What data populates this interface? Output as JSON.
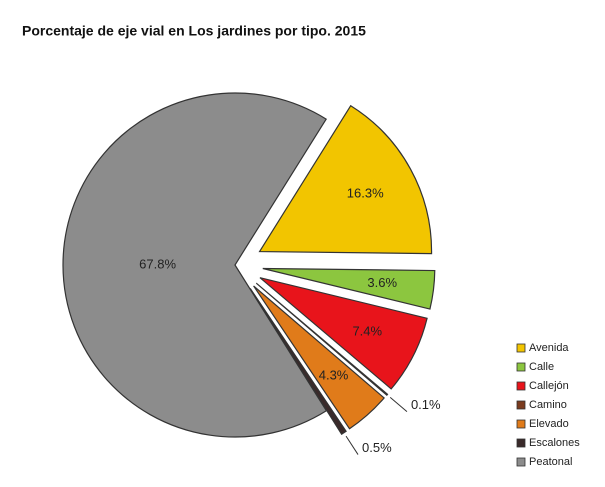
{
  "chart_data": {
    "type": "pie",
    "title": "Porcentaje de eje vial en Los jardines por tipo. 2015",
    "categories": [
      "Avenida",
      "Calle",
      "Callejón",
      "Camino",
      "Elevado",
      "Escalones",
      "Peatonal"
    ],
    "values": [
      16.3,
      3.6,
      7.4,
      0.1,
      4.3,
      0.5,
      67.8
    ],
    "value_labels": [
      "16.3%",
      "3.6%",
      "7.4%",
      "0.1%",
      "4.3%",
      "0.5%",
      "67.8%"
    ],
    "colors": [
      "#f2c500",
      "#8cc63f",
      "#e8141b",
      "#7a3b1e",
      "#e07b1a",
      "#3a2a2a",
      "#8c8c8c"
    ],
    "legend": "right"
  }
}
